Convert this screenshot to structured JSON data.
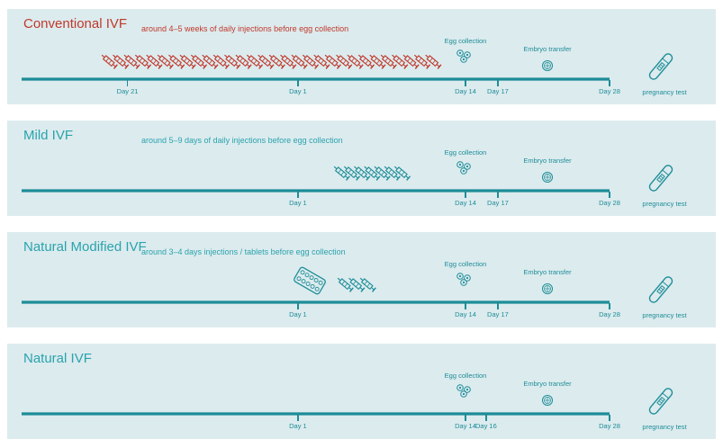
{
  "colors": {
    "accent": "#1d8d97",
    "title": "#2aa3ad",
    "highlight": "#c0392b",
    "panel": "#dcebee"
  },
  "panels": [
    {
      "title": "Conventional IVF",
      "subtitle": "around 4–5 weeks of daily injections before egg collection",
      "highlight": true,
      "days": [
        {
          "label": "Day 21",
          "pos": 0.18
        },
        {
          "label": "Day 1",
          "pos": 0.47
        },
        {
          "label": "Day 14",
          "pos": 0.755
        },
        {
          "label": "Day 17",
          "pos": 0.81
        },
        {
          "label": "Day 28",
          "pos": 1.0
        }
      ],
      "egg_collection": "Egg collection",
      "embryo_transfer": "Embryo transfer",
      "pregnancy_test": "pregnancy test",
      "injections": 30,
      "tablets": false
    },
    {
      "title": "Mild IVF",
      "subtitle": "around 5–9 days of daily injections before egg collection",
      "highlight": false,
      "days": [
        {
          "label": "Day 1",
          "pos": 0.47
        },
        {
          "label": "Day 14",
          "pos": 0.755
        },
        {
          "label": "Day 17",
          "pos": 0.81
        },
        {
          "label": "Day 28",
          "pos": 1.0
        }
      ],
      "egg_collection": "Egg collection",
      "embryo_transfer": "Embryo transfer",
      "pregnancy_test": "pregnancy test",
      "injections": 7,
      "tablets": false
    },
    {
      "title": "Natural Modified IVF",
      "subtitle": "around 3–4 days injections / tablets before egg collection",
      "highlight": false,
      "days": [
        {
          "label": "Day 1",
          "pos": 0.47
        },
        {
          "label": "Day 14",
          "pos": 0.755
        },
        {
          "label": "Day 17",
          "pos": 0.81
        },
        {
          "label": "Day 28",
          "pos": 1.0
        }
      ],
      "egg_collection": "Egg collection",
      "embryo_transfer": "Embryo transfer",
      "pregnancy_test": "pregnancy test",
      "injections": 3,
      "tablets": true
    },
    {
      "title": "Natural IVF",
      "subtitle": "",
      "highlight": false,
      "days": [
        {
          "label": "Day 1",
          "pos": 0.47
        },
        {
          "label": "Day 14",
          "pos": 0.755
        },
        {
          "label": "Day 16",
          "pos": 0.79
        },
        {
          "label": "Day 28",
          "pos": 1.0
        }
      ],
      "egg_collection": "Egg collection",
      "embryo_transfer": "Embryo transfer",
      "pregnancy_test": "pregnancy test",
      "injections": 0,
      "tablets": false
    }
  ]
}
